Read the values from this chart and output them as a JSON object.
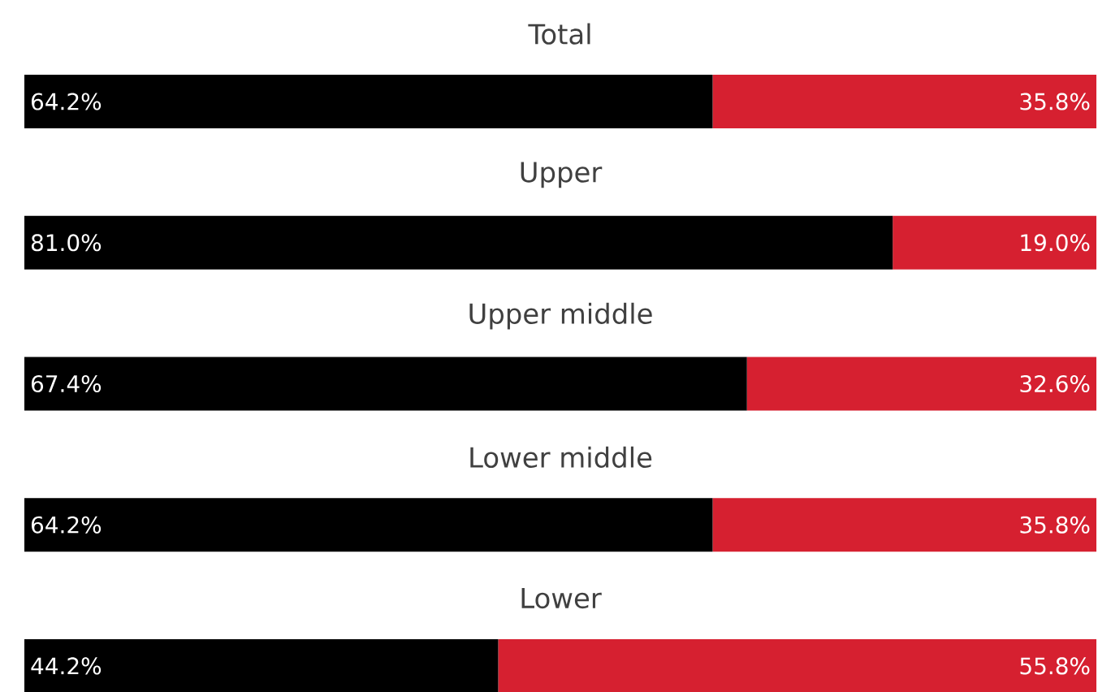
{
  "chart_data": {
    "type": "bar",
    "orientation": "horizontal",
    "stacked": true,
    "tick_labels": false,
    "categories": [
      "Total",
      "Upper",
      "Upper middle",
      "Lower middle",
      "Lower"
    ],
    "xlim": [
      0,
      100
    ],
    "series": [
      {
        "color": "#000000",
        "values": [
          64.2,
          81.0,
          67.4,
          64.2,
          44.2
        ],
        "value_labels": [
          "64.2%",
          "81.0%",
          "67.4%",
          "64.2%",
          "44.2%"
        ]
      },
      {
        "color": "#d62030",
        "values": [
          35.8,
          19.0,
          32.6,
          35.8,
          55.8
        ],
        "value_labels": [
          "35.8%",
          "19.0%",
          "32.6%",
          "35.8%",
          "55.8%"
        ]
      }
    ]
  }
}
